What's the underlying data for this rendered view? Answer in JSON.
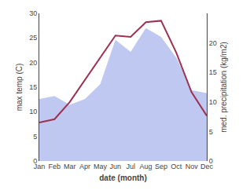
{
  "chart_data": {
    "type": "line",
    "categories": [
      "Jan",
      "Feb",
      "Mar",
      "Apr",
      "May",
      "Jun",
      "Jul",
      "Aug",
      "Sep",
      "Oct",
      "Nov",
      "Dec"
    ],
    "series": [
      {
        "type": "area",
        "axis": "y2",
        "color": "#bfc8f0",
        "values": [
          10.5,
          11.0,
          9.5,
          10.5,
          13.0,
          20.5,
          18.5,
          22.5,
          21.0,
          17.5,
          12.0,
          11.5
        ]
      },
      {
        "type": "line",
        "color": "#9e3050",
        "values": [
          7.8,
          8.5,
          12.0,
          16.5,
          20.8,
          25.5,
          25.2,
          28.2,
          28.5,
          22.0,
          14.0,
          9.2
        ]
      }
    ],
    "xlabel": "date (month)",
    "ylabel": "max temp (C)",
    "y2label": "med. precipitation (kg/m2)",
    "ylim": [
      0,
      30
    ],
    "yticks": [
      0,
      5,
      10,
      15,
      20,
      25,
      30
    ],
    "y2lim": [
      0,
      25
    ],
    "y2ticks": [
      0,
      5,
      10,
      15,
      20
    ],
    "grid": false
  }
}
